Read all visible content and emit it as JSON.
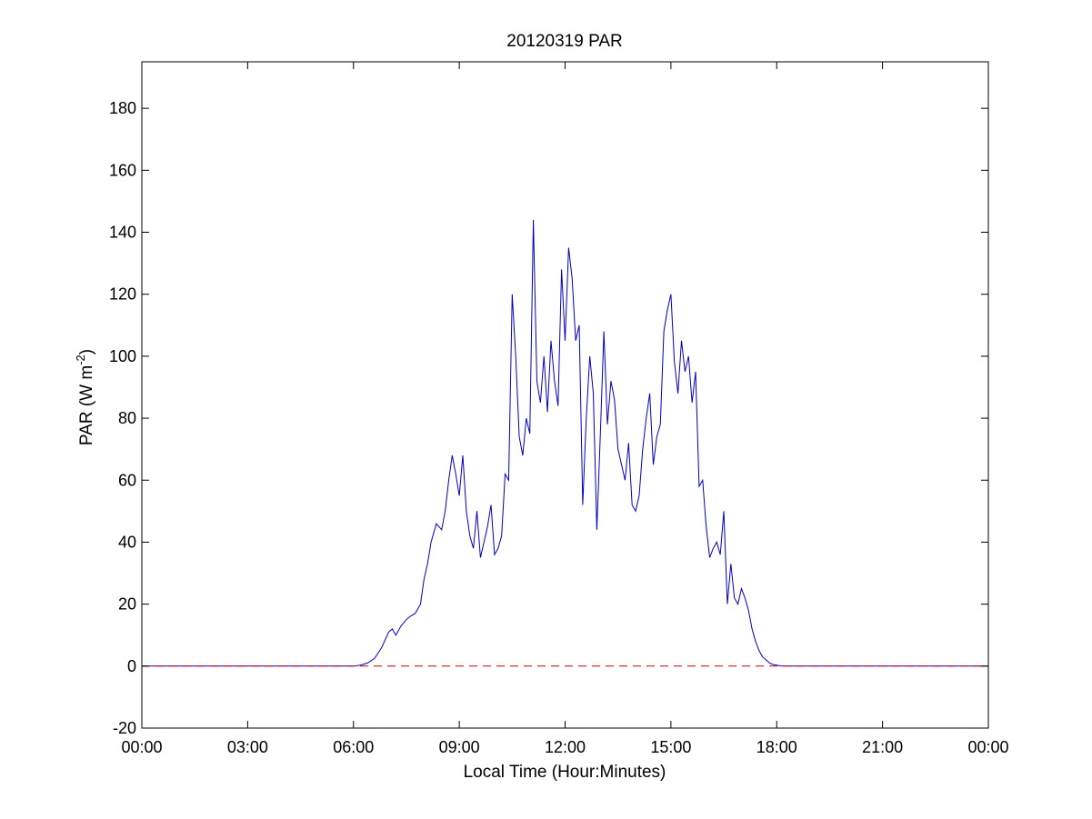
{
  "chart_data": {
    "type": "line",
    "title": "20120319 PAR",
    "xlabel": "Local Time (Hour:Minutes)",
    "ylabel_parts": [
      "PAR (W m",
      "-2",
      ")"
    ],
    "xlim": [
      0,
      24
    ],
    "ylim": [
      -20,
      195
    ],
    "x_ticks": [
      0,
      3,
      6,
      9,
      12,
      15,
      18,
      21,
      24
    ],
    "x_tick_labels": [
      "00:00",
      "03:00",
      "06:00",
      "09:00",
      "12:00",
      "15:00",
      "18:00",
      "21:00",
      "00:00"
    ],
    "y_ticks": [
      -20,
      0,
      20,
      40,
      60,
      80,
      100,
      120,
      140,
      160,
      180
    ],
    "y_tick_labels": [
      "-20",
      "0",
      "20",
      "40",
      "60",
      "80",
      "100",
      "120",
      "140",
      "160",
      "180"
    ],
    "grid": false,
    "x_unit": "hours (local time)",
    "series": [
      {
        "color": "#0000cc",
        "style": "solid",
        "x": [
          0,
          6.0,
          6.2,
          6.4,
          6.6,
          6.8,
          7.0,
          7.1,
          7.2,
          7.35,
          7.5,
          7.6,
          7.75,
          7.9,
          8.0,
          8.1,
          8.2,
          8.35,
          8.5,
          8.6,
          8.7,
          8.8,
          8.9,
          9.0,
          9.1,
          9.2,
          9.3,
          9.4,
          9.5,
          9.6,
          9.7,
          9.8,
          9.9,
          10.0,
          10.1,
          10.2,
          10.3,
          10.4,
          10.5,
          10.6,
          10.7,
          10.8,
          10.9,
          11.0,
          11.1,
          11.2,
          11.3,
          11.4,
          11.5,
          11.6,
          11.7,
          11.8,
          11.9,
          12.0,
          12.1,
          12.2,
          12.3,
          12.4,
          12.5,
          12.6,
          12.7,
          12.8,
          12.9,
          13.0,
          13.1,
          13.2,
          13.3,
          13.4,
          13.5,
          13.6,
          13.7,
          13.8,
          13.9,
          14.0,
          14.1,
          14.2,
          14.3,
          14.4,
          14.5,
          14.6,
          14.7,
          14.8,
          14.9,
          15.0,
          15.1,
          15.2,
          15.3,
          15.4,
          15.5,
          15.6,
          15.7,
          15.8,
          15.9,
          16.0,
          16.1,
          16.2,
          16.3,
          16.4,
          16.5,
          16.6,
          16.7,
          16.8,
          16.9,
          17.0,
          17.1,
          17.2,
          17.3,
          17.4,
          17.5,
          17.6,
          17.7,
          17.8,
          17.9,
          18.0,
          18.1,
          18.2,
          18.3,
          24
        ],
        "y": [
          0,
          0,
          0.3,
          1,
          2.5,
          6,
          11,
          12,
          10,
          13,
          15,
          16,
          17,
          20,
          28,
          33,
          40,
          46,
          44,
          50,
          60,
          68,
          62,
          55,
          68,
          50,
          42,
          38,
          50,
          35,
          40,
          45,
          52,
          36,
          38,
          42,
          62,
          60,
          120,
          100,
          74,
          68,
          80,
          75,
          144,
          92,
          85,
          100,
          82,
          105,
          92,
          84,
          128,
          105,
          135,
          125,
          105,
          110,
          52,
          80,
          100,
          88,
          44,
          75,
          108,
          78,
          92,
          86,
          70,
          65,
          60,
          72,
          52,
          50,
          55,
          70,
          80,
          88,
          65,
          74,
          78,
          108,
          115,
          120,
          98,
          88,
          105,
          95,
          100,
          85,
          95,
          58,
          60,
          45,
          35,
          38,
          40,
          36,
          50,
          20,
          33,
          22,
          20,
          25,
          22,
          18,
          12,
          8,
          5,
          3,
          2,
          1,
          0.5,
          0.3,
          0.1,
          0,
          0,
          0
        ]
      },
      {
        "color": "#cc0000",
        "style": "dashed",
        "x": [
          0,
          24
        ],
        "y": [
          0,
          0
        ]
      }
    ]
  }
}
